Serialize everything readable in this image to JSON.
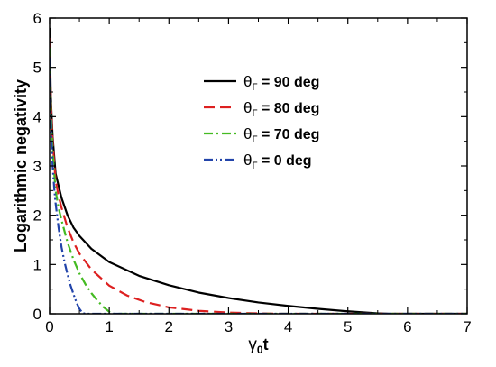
{
  "chart_data": {
    "type": "line",
    "title": "",
    "xlabel": {
      "symbol": "γ",
      "subscript": "0",
      "suffix": "t"
    },
    "ylabel": "Logarithmic negativity",
    "xlim": [
      0,
      7
    ],
    "ylim": [
      0,
      6
    ],
    "xticks": [
      "0",
      "1",
      "2",
      "3",
      "4",
      "5",
      "6",
      "7"
    ],
    "yticks": [
      "0",
      "1",
      "2",
      "3",
      "4",
      "5",
      "6"
    ],
    "grid": false,
    "legend_position": "upper-right",
    "series": [
      {
        "name": "θ",
        "name_subscript": "Γ",
        "name_suffix": " = 90 deg",
        "color": "#000000",
        "dash": "solid",
        "x": [
          0,
          0.02,
          0.05,
          0.1,
          0.15,
          0.2,
          0.3,
          0.4,
          0.5,
          0.7,
          1.0,
          1.5,
          2.0,
          2.5,
          3.0,
          3.5,
          4.0,
          4.5,
          5.0,
          5.3,
          5.5,
          5.7,
          6.0,
          7.0
        ],
        "y": [
          5.8,
          4.4,
          3.6,
          2.85,
          2.6,
          2.35,
          2.0,
          1.75,
          1.58,
          1.32,
          1.05,
          0.77,
          0.58,
          0.43,
          0.32,
          0.23,
          0.16,
          0.1,
          0.05,
          0.025,
          0.01,
          0.0,
          0.0,
          0.0
        ]
      },
      {
        "name": "θ",
        "name_subscript": "Γ",
        "name_suffix": " = 80 deg",
        "color": "#dd2020",
        "dash": "dashed",
        "x": [
          0,
          0.02,
          0.05,
          0.1,
          0.15,
          0.2,
          0.3,
          0.4,
          0.5,
          0.7,
          1.0,
          1.3,
          1.6,
          2.0,
          2.5,
          3.0,
          3.5,
          3.8,
          4.0,
          7.0
        ],
        "y": [
          5.6,
          4.3,
          3.5,
          2.7,
          2.4,
          2.15,
          1.75,
          1.45,
          1.22,
          0.9,
          0.57,
          0.37,
          0.24,
          0.13,
          0.06,
          0.025,
          0.008,
          0.002,
          0.0,
          0.0
        ]
      },
      {
        "name": "θ",
        "name_subscript": "Γ",
        "name_suffix": " = 70 deg",
        "color": "#44bb22",
        "dash": "dashdot",
        "x": [
          0,
          0.02,
          0.05,
          0.1,
          0.15,
          0.2,
          0.3,
          0.4,
          0.5,
          0.6,
          0.7,
          0.8,
          0.9,
          1.0,
          1.05,
          7.0
        ],
        "y": [
          5.4,
          4.1,
          3.3,
          2.5,
          2.15,
          1.9,
          1.45,
          1.1,
          0.82,
          0.6,
          0.42,
          0.27,
          0.14,
          0.04,
          0.0,
          0.0
        ]
      },
      {
        "name": "θ",
        "name_subscript": "Γ",
        "name_suffix": " = 0 deg",
        "color": "#2244aa",
        "dash": "dashdotdot",
        "x": [
          0,
          0.02,
          0.05,
          0.08,
          0.1,
          0.15,
          0.2,
          0.25,
          0.3,
          0.35,
          0.4,
          0.45,
          0.5,
          0.55,
          0.6,
          7.0
        ],
        "y": [
          5.2,
          3.9,
          3.0,
          2.5,
          2.25,
          1.75,
          1.35,
          1.05,
          0.8,
          0.58,
          0.4,
          0.23,
          0.1,
          0.02,
          0.0,
          0.0
        ]
      }
    ]
  }
}
